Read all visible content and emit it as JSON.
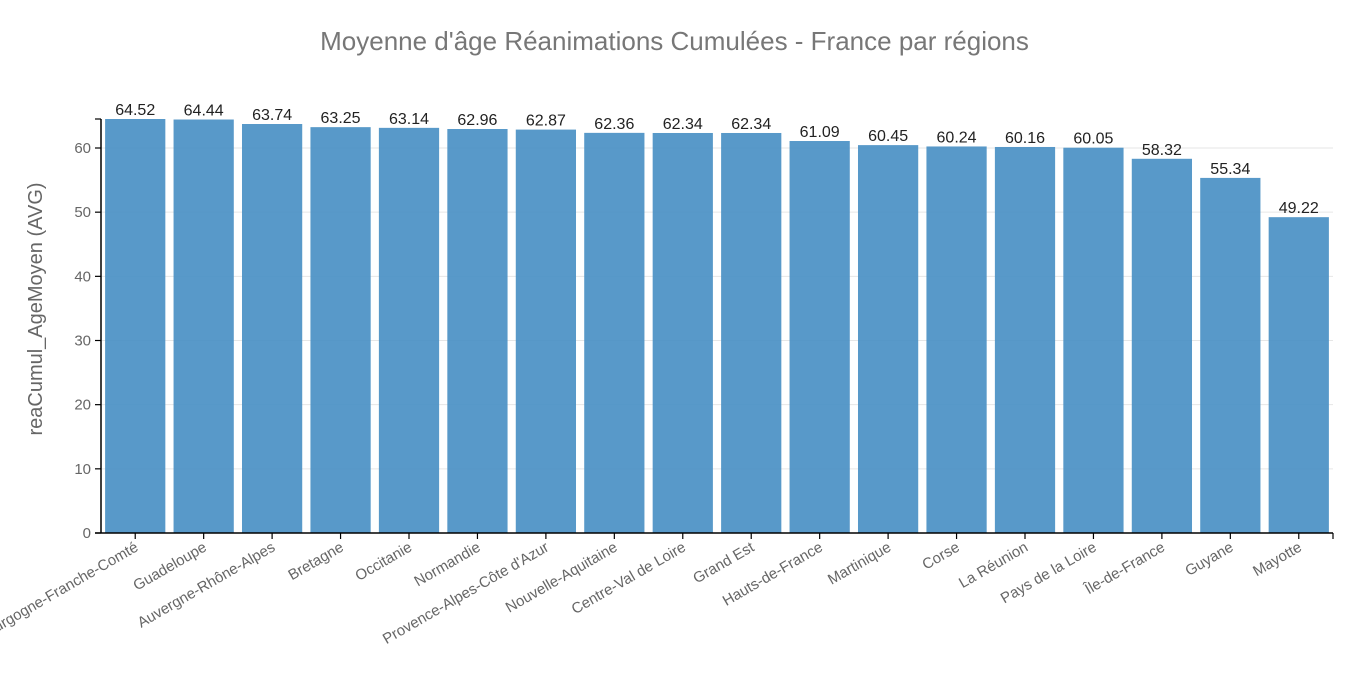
{
  "chart_data": {
    "type": "bar",
    "title": "Moyenne d'âge Réanimations Cumulées - France par régions",
    "xlabel": "",
    "ylabel": "reaCumul_AgeMoyen (AVG)",
    "ylim": [
      0,
      64.52
    ],
    "yticks": [
      0,
      10,
      20,
      30,
      40,
      50,
      60
    ],
    "grid": true,
    "bar_color": "#4a90c4",
    "categories": [
      "Bourgogne-Franche-Comté",
      "Guadeloupe",
      "Auvergne-Rhône-Alpes",
      "Bretagne",
      "Occitanie",
      "Normandie",
      "Provence-Alpes-Côte d'Azur",
      "Nouvelle-Aquitaine",
      "Centre-Val de Loire",
      "Grand Est",
      "Hauts-de-France",
      "Martinique",
      "Corse",
      "La Réunion",
      "Pays de la Loire",
      "Île-de-France",
      "Guyane",
      "Mayotte"
    ],
    "values": [
      64.52,
      64.44,
      63.74,
      63.25,
      63.14,
      62.96,
      62.87,
      62.36,
      62.34,
      62.34,
      61.09,
      60.45,
      60.24,
      60.16,
      60.05,
      58.32,
      55.34,
      49.22
    ],
    "value_labels": [
      "64.52",
      "64.44",
      "63.74",
      "63.25",
      "63.14",
      "62.96",
      "62.87",
      "62.36",
      "62.34",
      "62.34",
      "61.09",
      "60.45",
      "60.24",
      "60.16",
      "60.05",
      "58.32",
      "55.34",
      "49.22"
    ]
  }
}
